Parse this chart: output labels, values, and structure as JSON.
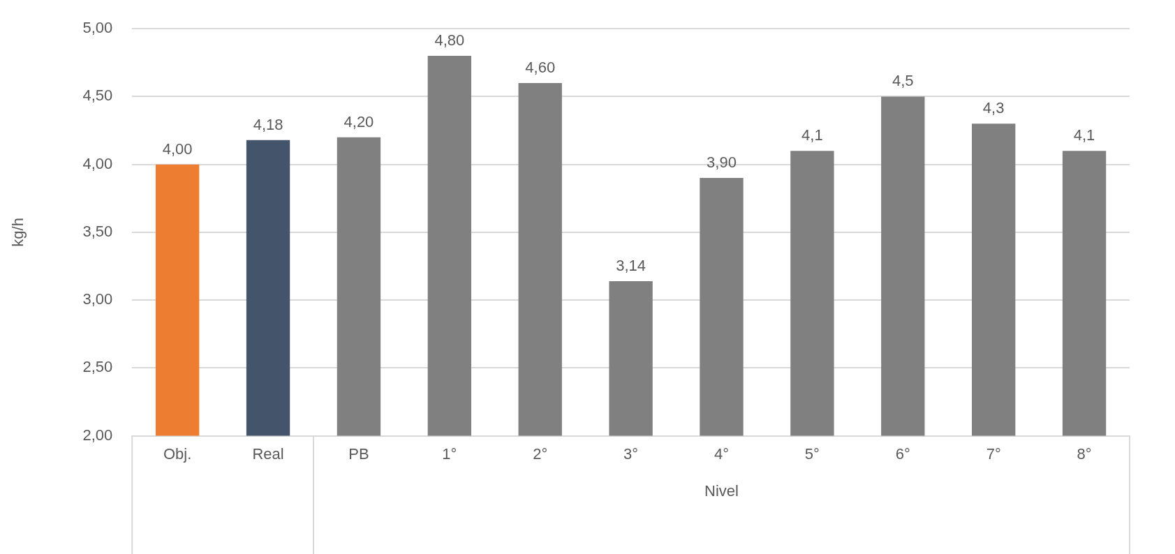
{
  "chart_data": {
    "type": "bar",
    "ylabel": "kg/h",
    "xlabel": "Nivel",
    "categories": [
      "Obj.",
      "Real",
      "PB",
      "1°",
      "2°",
      "3°",
      "4°",
      "5°",
      "6°",
      "7°",
      "8°"
    ],
    "values": [
      4.0,
      4.18,
      4.2,
      4.8,
      4.6,
      3.14,
      3.9,
      4.1,
      4.5,
      4.3,
      4.1
    ],
    "colors": [
      "#ed7d31",
      "#44546a",
      "#808080",
      "#808080",
      "#808080",
      "#808080",
      "#808080",
      "#808080",
      "#808080",
      "#808080",
      "#808080"
    ],
    "value_labels": [
      "4,00",
      "4,18",
      "4,20",
      "4,80",
      "4,60",
      "3,14",
      "3,90",
      "4,1",
      "4,5",
      "4,3",
      "4,1"
    ],
    "ylim": [
      2,
      5
    ],
    "yticks": [
      {
        "value": 2,
        "label": "2,00"
      },
      {
        "value": 2.5,
        "label": "2,50"
      },
      {
        "value": 3,
        "label": "3,00"
      },
      {
        "value": 3.5,
        "label": "3,50"
      },
      {
        "value": 4,
        "label": "4,00"
      },
      {
        "value": 4.5,
        "label": "4,50"
      },
      {
        "value": 5,
        "label": "5,00"
      }
    ],
    "grid": "y"
  }
}
